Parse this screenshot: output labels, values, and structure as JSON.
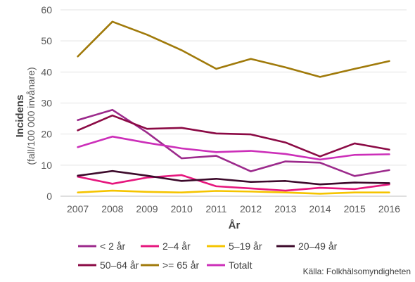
{
  "chart_data": {
    "type": "line",
    "x": [
      "2007",
      "2008",
      "2009",
      "2010",
      "2011",
      "2012",
      "2013",
      "2014",
      "2015",
      "2016"
    ],
    "xlabel": "År",
    "ylabel": "Incidens",
    "ylabel_sub": "(fall/100 000 invånare)",
    "ylim": [
      0,
      60
    ],
    "yticks": [
      "0",
      "10",
      "20",
      "30",
      "40",
      "50",
      "60"
    ],
    "grid": "horizontal",
    "legend_position": "bottom",
    "series": [
      {
        "name": "< 2 år",
        "color": "#9c2a8c",
        "values": [
          24.5,
          27.8,
          20.5,
          12.2,
          13.0,
          8.0,
          11.2,
          10.8,
          6.5,
          8.4
        ]
      },
      {
        "name": "2–4 år",
        "color": "#e6177e",
        "values": [
          6.3,
          4.0,
          6.0,
          6.8,
          3.2,
          2.5,
          1.8,
          2.7,
          2.3,
          3.8
        ]
      },
      {
        "name": "5–19 år",
        "color": "#f5c400",
        "values": [
          1.2,
          1.8,
          1.4,
          1.2,
          1.7,
          1.5,
          1.2,
          0.8,
          1.2,
          1.2
        ]
      },
      {
        "name": "20–49 år",
        "color": "#3d0a2b",
        "values": [
          6.6,
          8.1,
          6.6,
          4.9,
          5.6,
          4.6,
          4.9,
          3.8,
          4.4,
          4.2
        ]
      },
      {
        "name": "50–64 år",
        "color": "#8b0a45",
        "values": [
          21.2,
          26.0,
          21.7,
          22.0,
          20.2,
          19.9,
          17.3,
          12.8,
          17.0,
          15.0
        ]
      },
      {
        "name": ">= 65 år",
        "color": "#a07a0a",
        "values": [
          45.0,
          56.2,
          52.0,
          47.0,
          41.0,
          44.2,
          41.5,
          38.4,
          41.0,
          43.5
        ]
      },
      {
        "name": "Totalt",
        "color": "#cc2fb9",
        "values": [
          15.8,
          19.2,
          17.2,
          15.4,
          14.2,
          14.6,
          13.6,
          11.8,
          13.3,
          13.5
        ]
      }
    ]
  },
  "source": "Källa: Folkhälsomyndigheten"
}
